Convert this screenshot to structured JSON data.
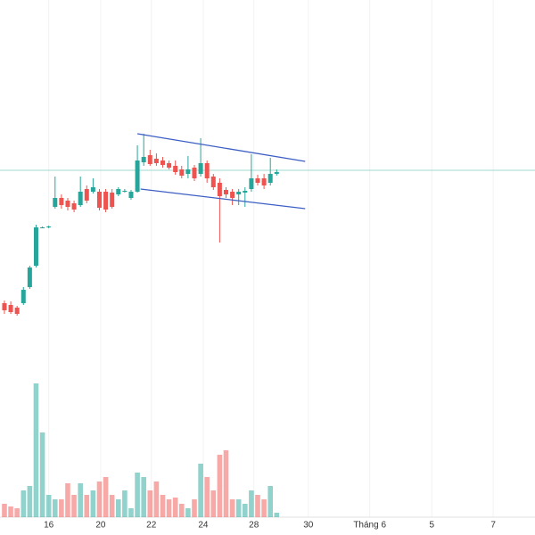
{
  "chart_data": {
    "type": "candlestick",
    "open": [
      260,
      258,
      255,
      260,
      278,
      302,
      345,
      345,
      368,
      378,
      375,
      372,
      370,
      388,
      385,
      385,
      385,
      384,
      382,
      385,
      378,
      385,
      418,
      426,
      422,
      420,
      417,
      414,
      410,
      405,
      412,
      405,
      417,
      402,
      395,
      387,
      385,
      382,
      384,
      388,
      400,
      400,
      395,
      405
    ],
    "high": [
      263,
      262,
      257,
      278,
      302,
      348,
      346,
      347,
      402,
      382,
      378,
      375,
      402,
      392,
      400,
      388,
      388,
      388,
      390,
      388,
      387,
      437,
      450,
      432,
      428,
      424,
      420,
      420,
      414,
      425,
      415,
      445,
      420,
      405,
      400,
      390,
      388,
      388,
      390,
      427,
      404,
      405,
      423,
      410
    ],
    "low": [
      248,
      248,
      246,
      258,
      276,
      300,
      344,
      344,
      366,
      366,
      364,
      362,
      368,
      372,
      383,
      364,
      362,
      366,
      380,
      384,
      376,
      384,
      414,
      414,
      414,
      412,
      410,
      404,
      400,
      400,
      397,
      402,
      395,
      387,
      328,
      378,
      370,
      370,
      368,
      385,
      392,
      388,
      392,
      403
    ],
    "close": [
      252,
      250,
      248,
      275,
      300,
      345,
      345,
      346,
      378,
      370,
      368,
      365,
      385,
      375,
      390,
      367,
      365,
      368,
      388,
      386,
      385,
      420,
      424,
      416,
      417,
      415,
      412,
      407,
      403,
      410,
      400,
      417,
      400,
      390,
      380,
      382,
      378,
      385,
      386,
      400,
      395,
      392,
      405,
      407
    ],
    "volume": [
      15,
      12,
      10,
      30,
      35,
      150,
      95,
      25,
      20,
      20,
      38,
      25,
      38,
      25,
      30,
      40,
      45,
      25,
      20,
      30,
      10,
      50,
      45,
      30,
      40,
      25,
      20,
      22,
      15,
      10,
      20,
      60,
      45,
      30,
      70,
      75,
      20,
      20,
      15,
      30,
      25,
      20,
      35,
      5
    ],
    "up_color": "#26a69a",
    "down_color": "#ef5350",
    "xlim": [
      -0.7,
      83.8
    ],
    "ylim": [
      0,
      600
    ],
    "volume_lim": [
      0,
      580
    ],
    "xticks": [
      {
        "value": 7.0,
        "label": "16"
      },
      {
        "value": 15.2,
        "label": "20"
      },
      {
        "value": 23.2,
        "label": "22"
      },
      {
        "value": 31.4,
        "label": "24"
      },
      {
        "value": 39.4,
        "label": "28"
      },
      {
        "value": 48.0,
        "label": "30"
      },
      {
        "value": 57.7,
        "label": "Tháng 6"
      },
      {
        "value": 67.5,
        "label": "5"
      },
      {
        "value": 77.2,
        "label": "7"
      }
    ],
    "grid": true,
    "price_line": 409,
    "price_line_color": "#9fd9cf",
    "trendlines": [
      {
        "x": [
          21,
          47.5
        ],
        "y": [
          450,
          419
        ]
      },
      {
        "x": [
          21.5,
          47.5
        ],
        "y": [
          388,
          366
        ]
      }
    ],
    "trendline_color": "#3d5fc4"
  }
}
